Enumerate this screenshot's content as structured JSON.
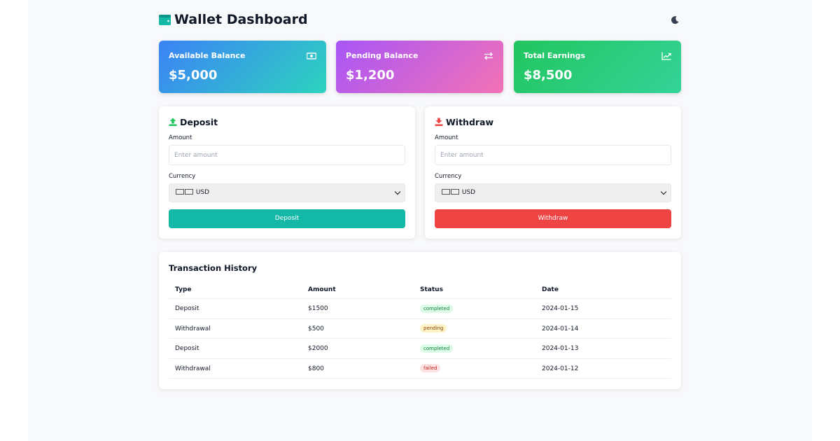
{
  "header": {
    "title": "Wallet Dashboard",
    "wallet_icon": "wallet-icon",
    "theme_icon": "moon-icon"
  },
  "stats": [
    {
      "label": "Available Balance",
      "value": "$5,000",
      "icon": "cash-icon"
    },
    {
      "label": "Pending Balance",
      "value": "$1,200",
      "icon": "exchange-icon"
    },
    {
      "label": "Total Earnings",
      "value": "$8,500",
      "icon": "chart-line-icon"
    }
  ],
  "deposit": {
    "title": "Deposit",
    "amount_label": "Amount",
    "amount_placeholder": "Enter amount",
    "currency_label": "Currency",
    "currency_value": "USD",
    "button_label": "Deposit",
    "icon": "upload-icon",
    "icon_color": "#22c55e"
  },
  "withdraw": {
    "title": "Withdraw",
    "amount_label": "Amount",
    "amount_placeholder": "Enter amount",
    "currency_label": "Currency",
    "currency_value": "USD",
    "button_label": "Withdraw",
    "icon": "download-icon",
    "icon_color": "#ef4444"
  },
  "history": {
    "title": "Transaction History",
    "columns": [
      "Type",
      "Amount",
      "Status",
      "Date"
    ],
    "rows": [
      {
        "type": "Deposit",
        "amount": "$1500",
        "status": "completed",
        "date": "2024-01-15"
      },
      {
        "type": "Withdrawal",
        "amount": "$500",
        "status": "pending",
        "date": "2024-01-14"
      },
      {
        "type": "Deposit",
        "amount": "$2000",
        "status": "completed",
        "date": "2024-01-13"
      },
      {
        "type": "Withdrawal",
        "amount": "$800",
        "status": "failed",
        "date": "2024-01-12"
      }
    ]
  },
  "colors": {
    "accent": "#14b8a6",
    "danger": "#ef4444",
    "success": "#22c55e"
  }
}
